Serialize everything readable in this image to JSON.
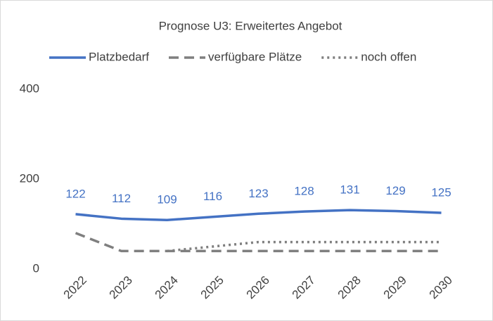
{
  "chart_data": {
    "type": "line",
    "title": "Prognose U3: Erweitertes Angebot",
    "categories": [
      "2022",
      "2023",
      "2024",
      "2025",
      "2026",
      "2027",
      "2028",
      "2029",
      "2030"
    ],
    "series": [
      {
        "name": "Platzbedarf",
        "color": "#4472c4",
        "style": "solid",
        "data_labels": true,
        "values": [
          122,
          112,
          109,
          116,
          123,
          128,
          131,
          129,
          125
        ]
      },
      {
        "name": "verfügbare Plätze",
        "color": "#7f7f7f",
        "style": "dashed",
        "data_labels": false,
        "values": [
          80,
          40,
          40,
          40,
          40,
          40,
          40,
          40,
          40
        ]
      },
      {
        "name": "noch offen",
        "color": "#7f7f7f",
        "style": "dotted",
        "data_labels": false,
        "values": [
          null,
          null,
          40,
          50,
          60,
          60,
          60,
          60,
          60
        ]
      }
    ],
    "ylim": [
      0,
      400
    ],
    "yticks": [
      0,
      200,
      400
    ],
    "grid": false,
    "legend": "top"
  }
}
